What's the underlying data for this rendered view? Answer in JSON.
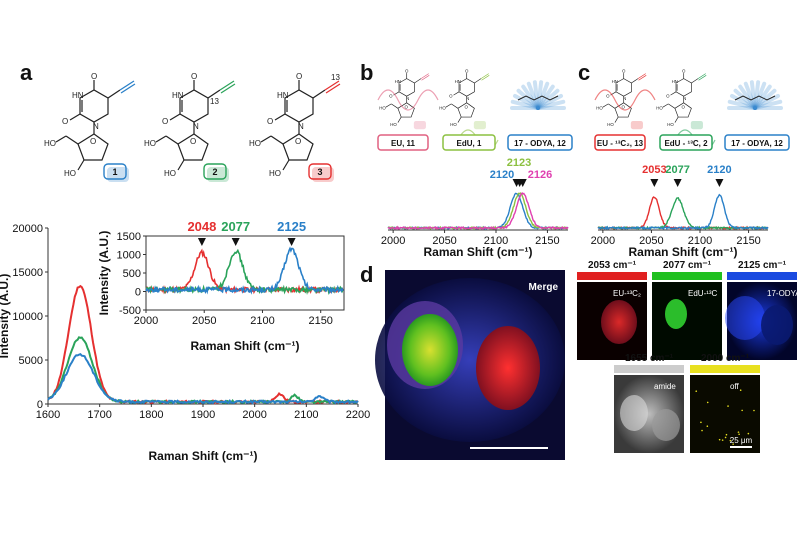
{
  "panels": {
    "a": {
      "label": "a",
      "compounds": [
        {
          "num": "1",
          "color": "#2a80c8"
        },
        {
          "num": "2",
          "color": "#2aa35a"
        },
        {
          "num": "3",
          "color": "#e53030"
        }
      ],
      "iso_label": "13",
      "main_xlabel": "Raman Shift (cm⁻¹)",
      "main_ylabel": "Intensity (A.U.)",
      "inset_xlabel": "Raman Shift (cm⁻¹)",
      "inset_ylabel": "Intensity (A.U.)"
    },
    "b": {
      "label": "b",
      "boxes": [
        {
          "text": "EU, 11",
          "color": "#e06080"
        },
        {
          "text": "EdU, 1",
          "color": "#8cc040"
        },
        {
          "text": "17 - ODYA, 12",
          "color": "#2a80c8"
        }
      ],
      "xlabel": "Raman Shift (cm⁻¹)"
    },
    "c": {
      "label": "c",
      "boxes": [
        {
          "text": "EU - ¹³C₂, 13",
          "color": "#e53030"
        },
        {
          "text": "EdU - ¹³C, 2",
          "color": "#2aa35a"
        },
        {
          "text": "17 - ODYA, 12",
          "color": "#2a80c8"
        }
      ],
      "xlabel": "Raman Shift (cm⁻¹)"
    },
    "d": {
      "label": "d",
      "merge_label": "Merge",
      "tiles": [
        {
          "header": "2053 cm⁻¹",
          "label": "EU-¹³C₂",
          "bar": "#e02020"
        },
        {
          "header": "2077 cm⁻¹",
          "label": "EdU-¹³C",
          "bar": "#20c020"
        },
        {
          "header": "2125 cm⁻¹",
          "label": "17-ODYA",
          "bar": "#1a4ae0"
        },
        {
          "header": "1655 cm⁻¹",
          "label": "amide",
          "bar": "#cccccc"
        },
        {
          "header": "2000 cm⁻¹",
          "label": "off",
          "bar": "#e8e020"
        }
      ],
      "scale_label": "25 μm"
    }
  },
  "chart_data": [
    {
      "id": "a-main",
      "type": "line",
      "xlabel": "Raman Shift (cm⁻¹)",
      "ylabel": "Intensity (A.U.)",
      "xlim": [
        1600,
        2200
      ],
      "ylim": [
        0,
        20000
      ],
      "xticks": [
        1600,
        1700,
        1800,
        1900,
        2000,
        2100,
        2200
      ],
      "yticks": [
        0,
        5000,
        10000,
        15000,
        20000
      ],
      "series": [
        {
          "color": "#e53030",
          "peaks": [
            [
              1662,
              13200,
              22
            ],
            [
              2048,
              900,
              8
            ]
          ]
        },
        {
          "color": "#2aa35a",
          "peaks": [
            [
              1662,
              7300,
              24
            ],
            [
              2077,
              700,
              8
            ]
          ]
        },
        {
          "color": "#2a80c8",
          "peaks": [
            [
              1662,
              5400,
              26
            ],
            [
              2125,
              650,
              8
            ]
          ]
        }
      ]
    },
    {
      "id": "a-inset",
      "type": "line",
      "xlabel": "Raman Shift (cm⁻¹)",
      "ylabel": "Intensity (A.U.)",
      "xlim": [
        2000,
        2170
      ],
      "ylim": [
        -500,
        1500
      ],
      "xticks": [
        2000,
        2050,
        2100,
        2150
      ],
      "yticks": [
        -500,
        0,
        500,
        1000,
        1500
      ],
      "annotations": [
        {
          "text": "2048",
          "x": 2048,
          "color": "#e53030"
        },
        {
          "text": "2077",
          "x": 2077,
          "color": "#2aa35a"
        },
        {
          "text": "2125",
          "x": 2125,
          "color": "#2a80c8"
        }
      ],
      "series": [
        {
          "color": "#e53030",
          "peaks": [
            [
              2048,
              1000,
              6
            ]
          ]
        },
        {
          "color": "#2aa35a",
          "peaks": [
            [
              2077,
              1050,
              6
            ]
          ]
        },
        {
          "color": "#2a80c8",
          "peaks": [
            [
              2125,
              1100,
              6
            ]
          ]
        }
      ]
    },
    {
      "id": "b",
      "type": "line",
      "xlabel": "Raman Shift (cm⁻¹)",
      "xlim": [
        1995,
        2170
      ],
      "xticks": [
        2000,
        2050,
        2100,
        2150
      ],
      "annotations": [
        {
          "text": "2120",
          "x": 2120,
          "color": "#2a80c8"
        },
        {
          "text": "2123",
          "x": 2123,
          "color": "#8cc040"
        },
        {
          "text": "2126",
          "x": 2126,
          "color": "#e040b0"
        }
      ],
      "series": [
        {
          "color": "#2a80c8",
          "peaks": [
            [
              2120,
              1,
              6
            ]
          ]
        },
        {
          "color": "#8cc040",
          "peaks": [
            [
              2123,
              1,
              6
            ]
          ]
        },
        {
          "color": "#e040b0",
          "peaks": [
            [
              2126,
              1,
              6
            ]
          ]
        }
      ]
    },
    {
      "id": "c",
      "type": "line",
      "xlabel": "Raman Shift (cm⁻¹)",
      "xlim": [
        1995,
        2170
      ],
      "xticks": [
        2000,
        2050,
        2100,
        2150
      ],
      "annotations": [
        {
          "text": "2053",
          "x": 2053,
          "color": "#e53030"
        },
        {
          "text": "2077",
          "x": 2077,
          "color": "#2aa35a"
        },
        {
          "text": "2120",
          "x": 2120,
          "color": "#2a80c8"
        }
      ],
      "series": [
        {
          "color": "#e53030",
          "peaks": [
            [
              2053,
              0.9,
              5
            ]
          ]
        },
        {
          "color": "#2aa35a",
          "peaks": [
            [
              2077,
              0.85,
              6
            ]
          ]
        },
        {
          "color": "#2a80c8",
          "peaks": [
            [
              2120,
              0.95,
              5
            ]
          ]
        }
      ]
    }
  ]
}
